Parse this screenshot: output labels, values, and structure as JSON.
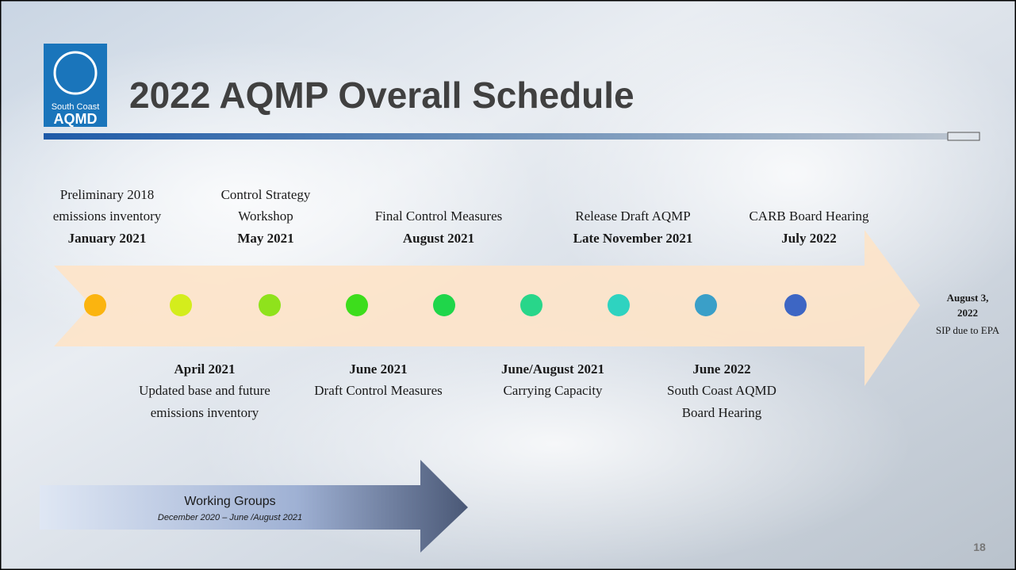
{
  "header": {
    "title": "2022 AQMP Overall Schedule",
    "logo": [
      "South Coast",
      "AQMD"
    ]
  },
  "milestones_above": [
    {
      "description": [
        "Preliminary 2018",
        "emissions inventory"
      ],
      "date": "January 2021"
    },
    {
      "description": [
        "Control Strategy",
        "Workshop"
      ],
      "date": "May 2021"
    },
    {
      "description": [
        "Final Control Measures"
      ],
      "date": "August 2021"
    },
    {
      "description": [
        "Release Draft AQMP"
      ],
      "date": "Late November 2021"
    },
    {
      "description": [
        "CARB Board Hearing"
      ],
      "date": "July 2022"
    }
  ],
  "milestones_below": [
    {
      "date": "April 2021",
      "description": [
        "Updated base and future",
        "emissions inventory"
      ]
    },
    {
      "date": "June 2021",
      "description": [
        "Draft Control Measures"
      ]
    },
    {
      "date": "June/August 2021",
      "description": [
        "Carrying Capacity"
      ]
    },
    {
      "date": "June 2022",
      "description": [
        "South Coast AQMD",
        "Board Hearing"
      ]
    }
  ],
  "deadline": {
    "date": [
      "August 3,",
      "2022"
    ],
    "description": "SIP due to EPA"
  },
  "working_groups": {
    "title": "Working Groups",
    "period": "December 2020 – June /August 2021"
  },
  "page_number": "18"
}
